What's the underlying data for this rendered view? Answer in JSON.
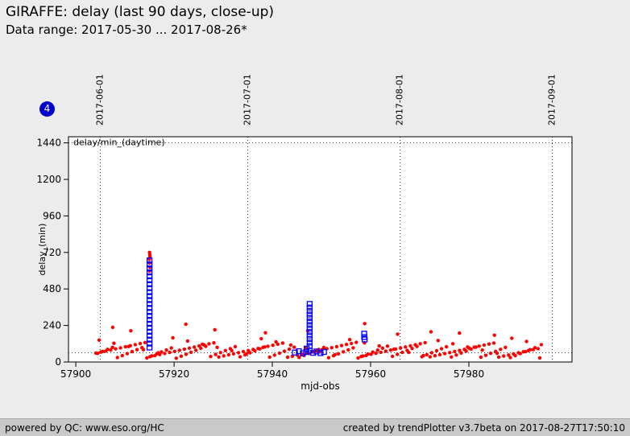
{
  "header": {
    "title": "GIRAFFE: delay (last 90 days, close-up)",
    "subtitle": "Data range: 2017-05-30 ... 2017-08-26*"
  },
  "badge": {
    "value": "4"
  },
  "footer": {
    "left": "powered by QC: www.eso.org/HC",
    "right": "created by trendPlotter v3.7beta on 2017-08-27T17:50:10"
  },
  "chart_data": {
    "type": "scatter",
    "title": "",
    "xlabel": "mjd-obs",
    "ylabel": "delay_(min)",
    "legend_label": "delay/min_(daytime)",
    "legend_position": "top-left",
    "grid_style": "dotted",
    "xlim": [
      57898.5,
      58001
    ],
    "ylim": [
      0,
      1480
    ],
    "x_ticks": [
      57900,
      57920,
      57940,
      57960,
      57980
    ],
    "y_ticks": [
      0,
      240,
      480,
      720,
      960,
      1200,
      1440
    ],
    "date_gridlines": [
      {
        "mjd": 57905,
        "label": "2017-06-01"
      },
      {
        "mjd": 57935,
        "label": "2017-07-01"
      },
      {
        "mjd": 57966,
        "label": "2017-08-01"
      },
      {
        "mjd": 57997,
        "label": "2017-09-01"
      }
    ],
    "reference_lines_y": [
      1440,
      60
    ],
    "series": [
      {
        "marker": "dot",
        "color": "#ff0000",
        "points": [
          [
            57904.1,
            58
          ],
          [
            57904.45,
            57
          ],
          [
            57904.75,
            144
          ],
          [
            57905.1,
            65
          ],
          [
            57905.45,
            70
          ],
          [
            57906.1,
            72
          ],
          [
            57906.45,
            83
          ],
          [
            57907.1,
            79
          ],
          [
            57907.45,
            96
          ],
          [
            57907.75,
            123
          ],
          [
            57907.5,
            228
          ],
          [
            57908.1,
            86
          ],
          [
            57908.45,
            29
          ],
          [
            57909.1,
            93
          ],
          [
            57909.45,
            42
          ],
          [
            57910.1,
            100
          ],
          [
            57910.45,
            55
          ],
          [
            57910.75,
            102
          ],
          [
            57911.1,
            107
          ],
          [
            57911.45,
            68
          ],
          [
            57911.2,
            205
          ],
          [
            57912.1,
            114
          ],
          [
            57912.45,
            81
          ],
          [
            57913.1,
            121
          ],
          [
            57913.45,
            94
          ],
          [
            57913.75,
            81
          ],
          [
            57914.1,
            128
          ],
          [
            57914.45,
            27
          ],
          [
            57915.1,
            35
          ],
          [
            57915.45,
            40
          ],
          [
            57915,
            720
          ],
          [
            57915.05,
            706
          ],
          [
            57915.1,
            692
          ],
          [
            57914.95,
            674
          ],
          [
            57915,
            650
          ],
          [
            57915.1,
            622
          ],
          [
            57915,
            598
          ],
          [
            57916.1,
            42
          ],
          [
            57916.45,
            53
          ],
          [
            57916.75,
            60
          ],
          [
            57917.1,
            49
          ],
          [
            57917.45,
            66
          ],
          [
            57918.1,
            56
          ],
          [
            57918.45,
            79
          ],
          [
            57919.1,
            63
          ],
          [
            57919.45,
            92
          ],
          [
            57919.75,
            159
          ],
          [
            57920.1,
            70
          ],
          [
            57920.45,
            25
          ],
          [
            57921.1,
            77
          ],
          [
            57921.45,
            38
          ],
          [
            57922.1,
            84
          ],
          [
            57922.45,
            51
          ],
          [
            57922.75,
            138
          ],
          [
            57922.4,
            248
          ],
          [
            57923.1,
            91
          ],
          [
            57923.45,
            64
          ],
          [
            57924.1,
            98
          ],
          [
            57924.45,
            77
          ],
          [
            57925.1,
            105
          ],
          [
            57925.45,
            90
          ],
          [
            57925.75,
            117
          ],
          [
            57926.1,
            112
          ],
          [
            57926.45,
            103
          ],
          [
            57927.1,
            119
          ],
          [
            57927.45,
            36
          ],
          [
            57928.1,
            126
          ],
          [
            57928.45,
            49
          ],
          [
            57928.75,
            96
          ],
          [
            57928.3,
            212
          ],
          [
            57929.1,
            33
          ],
          [
            57929.45,
            62
          ],
          [
            57930.1,
            40
          ],
          [
            57930.45,
            75
          ],
          [
            57931.1,
            47
          ],
          [
            57931.45,
            88
          ],
          [
            57931.75,
            75
          ],
          [
            57932.1,
            54
          ],
          [
            57932.45,
            101
          ],
          [
            57933.1,
            61
          ],
          [
            57933.45,
            34
          ],
          [
            57934.1,
            68
          ],
          [
            57934.45,
            47
          ],
          [
            57934.75,
            54
          ],
          [
            57935.1,
            75
          ],
          [
            57935.45,
            60
          ],
          [
            57936.1,
            82
          ],
          [
            57936.45,
            73
          ],
          [
            57937.1,
            89
          ],
          [
            57937.45,
            86
          ],
          [
            57937.75,
            153
          ],
          [
            57938.1,
            96
          ],
          [
            57938.45,
            99
          ],
          [
            57938.6,
            192
          ],
          [
            57939.1,
            103
          ],
          [
            57939.45,
            32
          ],
          [
            57940.1,
            110
          ],
          [
            57940.45,
            45
          ],
          [
            57940.75,
            132
          ],
          [
            57941.1,
            117
          ],
          [
            57941.45,
            58
          ],
          [
            57942.1,
            124
          ],
          [
            57942.45,
            71
          ],
          [
            57943.1,
            31
          ],
          [
            57943.45,
            84
          ],
          [
            57943.75,
            111
          ],
          [
            57944.1,
            38
          ],
          [
            57944.45,
            97
          ],
          [
            57945.1,
            45
          ],
          [
            57945.45,
            30
          ],
          [
            57946.1,
            52
          ],
          [
            57946.45,
            43
          ],
          [
            57946.75,
            90
          ],
          [
            57947.1,
            59
          ],
          [
            57947.45,
            56
          ],
          [
            57947.2,
            205
          ],
          [
            57948.1,
            66
          ],
          [
            57948.45,
            69
          ],
          [
            57949.1,
            73
          ],
          [
            57949.45,
            82
          ],
          [
            57949.75,
            69
          ],
          [
            57950.1,
            80
          ],
          [
            57950.45,
            95
          ],
          [
            57951.1,
            87
          ],
          [
            57951.45,
            28
          ],
          [
            57952.1,
            94
          ],
          [
            57952.45,
            41
          ],
          [
            57952.75,
            48
          ],
          [
            57953.1,
            101
          ],
          [
            57953.45,
            54
          ],
          [
            57954.1,
            108
          ],
          [
            57954.45,
            67
          ],
          [
            57955.1,
            115
          ],
          [
            57955.45,
            80
          ],
          [
            57955.75,
            147
          ],
          [
            57956.1,
            122
          ],
          [
            57956.45,
            93
          ],
          [
            57957.1,
            129
          ],
          [
            57957.45,
            26
          ],
          [
            57958.1,
            36
          ],
          [
            57958.45,
            39
          ],
          [
            57958.75,
            126
          ],
          [
            57958.8,
            252
          ],
          [
            57959.1,
            43
          ],
          [
            57959.45,
            52
          ],
          [
            57960.1,
            50
          ],
          [
            57960.45,
            65
          ],
          [
            57961.1,
            57
          ],
          [
            57961.45,
            78
          ],
          [
            57961.75,
            105
          ],
          [
            57962.1,
            64
          ],
          [
            57962.45,
            91
          ],
          [
            57963.1,
            71
          ],
          [
            57963.45,
            104
          ],
          [
            57964.1,
            78
          ],
          [
            57964.45,
            37
          ],
          [
            57964.75,
            84
          ],
          [
            57965.1,
            85
          ],
          [
            57965.45,
            50
          ],
          [
            57965.5,
            183
          ],
          [
            57966.1,
            92
          ],
          [
            57966.45,
            63
          ],
          [
            57967.1,
            99
          ],
          [
            57967.45,
            76
          ],
          [
            57967.75,
            63
          ],
          [
            57968.1,
            106
          ],
          [
            57968.45,
            89
          ],
          [
            57969.1,
            113
          ],
          [
            57969.45,
            102
          ],
          [
            57970.1,
            120
          ],
          [
            57970.45,
            35
          ],
          [
            57970.75,
            42
          ],
          [
            57971.1,
            127
          ],
          [
            57971.45,
            48
          ],
          [
            57972.1,
            34
          ],
          [
            57972.45,
            61
          ],
          [
            57972.3,
            198
          ],
          [
            57973.1,
            41
          ],
          [
            57973.45,
            74
          ],
          [
            57973.75,
            141
          ],
          [
            57974.1,
            48
          ],
          [
            57974.45,
            87
          ],
          [
            57975.1,
            55
          ],
          [
            57975.45,
            100
          ],
          [
            57976.1,
            62
          ],
          [
            57976.45,
            33
          ],
          [
            57976.75,
            120
          ],
          [
            57977.1,
            69
          ],
          [
            57977.45,
            46
          ],
          [
            57978.1,
            76
          ],
          [
            57978.45,
            59
          ],
          [
            57978.1,
            190
          ],
          [
            57979.1,
            83
          ],
          [
            57979.45,
            72
          ],
          [
            57979.75,
            99
          ],
          [
            57980.1,
            90
          ],
          [
            57980.45,
            85
          ],
          [
            57981.1,
            97
          ],
          [
            57981.45,
            98
          ],
          [
            57982.1,
            104
          ],
          [
            57982.45,
            31
          ],
          [
            57982.75,
            78
          ],
          [
            57983.1,
            111
          ],
          [
            57983.45,
            44
          ],
          [
            57984.1,
            118
          ],
          [
            57984.45,
            57
          ],
          [
            57985.1,
            125
          ],
          [
            57985.45,
            70
          ],
          [
            57985.75,
            57
          ],
          [
            57985.2,
            176
          ],
          [
            57986.1,
            32
          ],
          [
            57986.45,
            83
          ],
          [
            57987.1,
            39
          ],
          [
            57987.45,
            96
          ],
          [
            57988.1,
            46
          ],
          [
            57988.45,
            29
          ],
          [
            57988.75,
            156
          ],
          [
            57989.1,
            53
          ],
          [
            57989.45,
            42
          ],
          [
            57990.1,
            60
          ],
          [
            57990.45,
            55
          ],
          [
            57991.1,
            67
          ],
          [
            57991.45,
            68
          ],
          [
            57991.75,
            135
          ],
          [
            57992.1,
            74
          ],
          [
            57992.45,
            81
          ],
          [
            57993.1,
            81
          ],
          [
            57993.45,
            94
          ],
          [
            57994.1,
            88
          ],
          [
            57994.45,
            27
          ],
          [
            57994.75,
            114
          ]
        ]
      },
      {
        "marker": "open-square",
        "color": "#0000ff",
        "points": [
          [
            57915,
            95
          ],
          [
            57915,
            121
          ],
          [
            57915,
            147
          ],
          [
            57915,
            173
          ],
          [
            57915,
            199
          ],
          [
            57915,
            225
          ],
          [
            57915,
            251
          ],
          [
            57915,
            277
          ],
          [
            57915,
            303
          ],
          [
            57915,
            329
          ],
          [
            57915,
            355
          ],
          [
            57915,
            381
          ],
          [
            57915,
            407
          ],
          [
            57915,
            433
          ],
          [
            57915,
            459
          ],
          [
            57915,
            485
          ],
          [
            57915,
            511
          ],
          [
            57915,
            537
          ],
          [
            57915,
            563
          ],
          [
            57915,
            589
          ],
          [
            57915,
            615
          ],
          [
            57915,
            641
          ],
          [
            57915,
            667
          ],
          [
            57947.6,
            105
          ],
          [
            57947.6,
            128
          ],
          [
            57947.6,
            151
          ],
          [
            57947.6,
            174
          ],
          [
            57947.6,
            197
          ],
          [
            57947.6,
            220
          ],
          [
            57947.6,
            243
          ],
          [
            57947.6,
            266
          ],
          [
            57947.6,
            289
          ],
          [
            57947.6,
            312
          ],
          [
            57947.6,
            335
          ],
          [
            57947.6,
            358
          ],
          [
            57947.6,
            381
          ],
          [
            57944.6,
            62
          ],
          [
            57945.4,
            71
          ],
          [
            57946.2,
            57
          ],
          [
            57946.9,
            66
          ],
          [
            57947.6,
            75
          ],
          [
            57948.3,
            60
          ],
          [
            57949,
            69
          ],
          [
            57949.8,
            58
          ],
          [
            57950.5,
            66
          ],
          [
            57947,
            88
          ],
          [
            57958.7,
            186
          ],
          [
            57958.7,
            164
          ],
          [
            57958.8,
            148
          ]
        ]
      }
    ]
  }
}
